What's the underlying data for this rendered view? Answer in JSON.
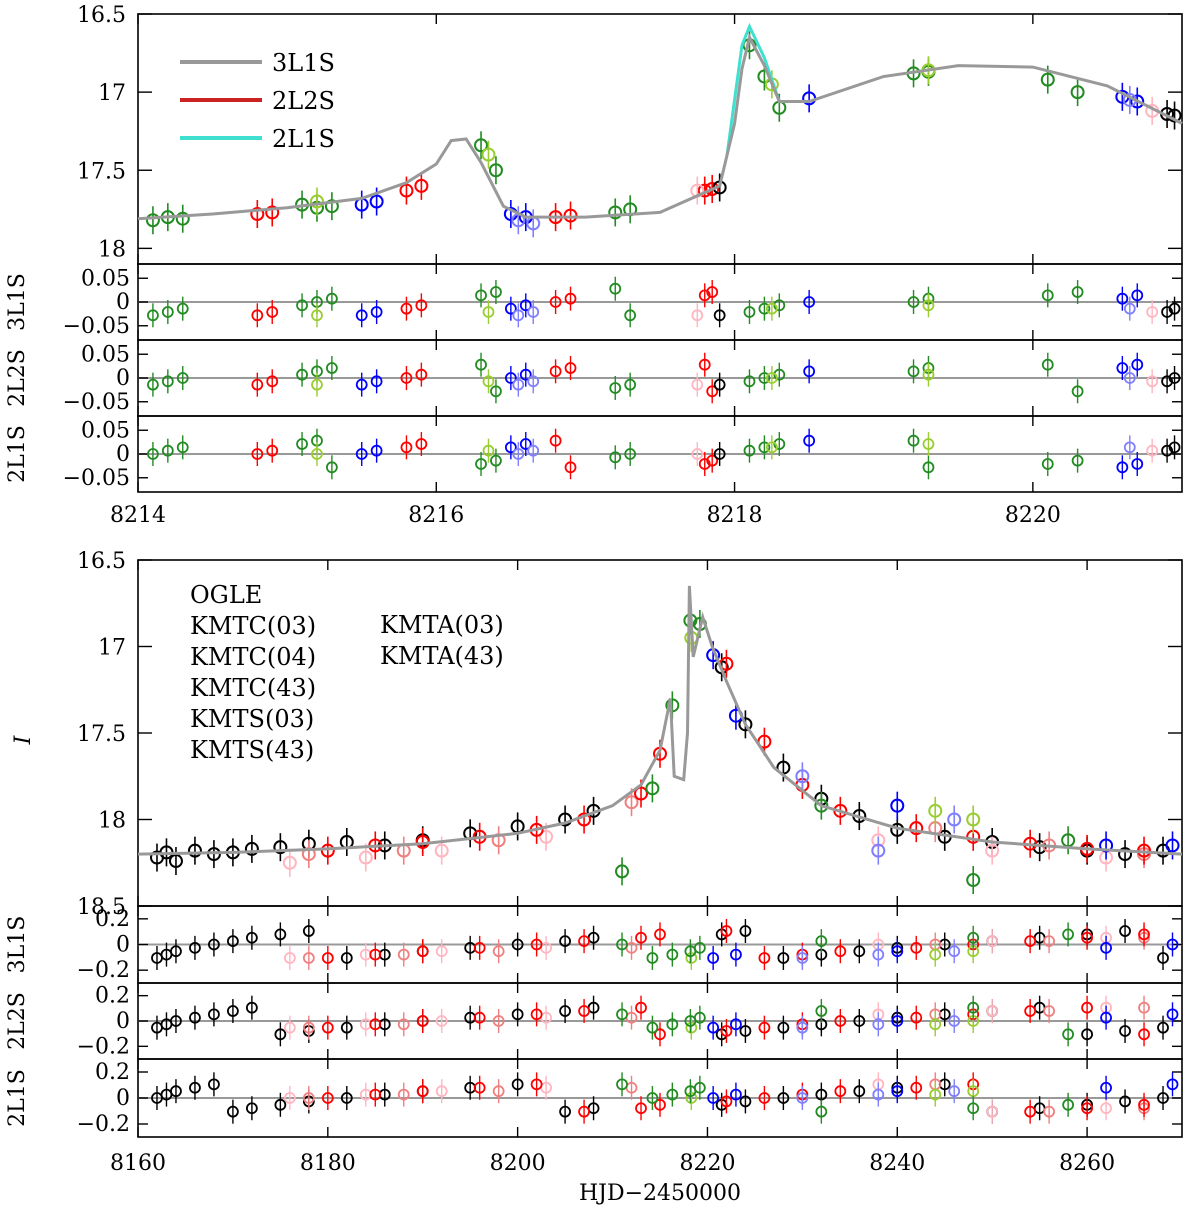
{
  "colors": {
    "OGLE": "#000000",
    "KMTC(03)": "#ffb6c1",
    "KMTC(04)": "#f08080",
    "KMTC(43)": "#ff0000",
    "KMTS(03)": "#8080ff",
    "KMTS(43)": "#0000ff",
    "KMTA(03)": "#9acd32",
    "KMTA(43)": "#228b22",
    "model_3L1S": "#999999",
    "model_2L2S": "#cc2222",
    "model_2L1S": "#40e0d0",
    "zero_line": "#999999"
  },
  "chart_data": [
    {
      "id": "zoom",
      "type": "scatter",
      "xlim": [
        8214,
        8221
      ],
      "ylim": [
        18.1,
        16.5
      ],
      "y_inverted": true,
      "xticks": [
        8214,
        8216,
        8218,
        8220
      ],
      "yticks": [
        16.5,
        17,
        17.5,
        18
      ],
      "ytick_labels": [
        "16.5",
        "17",
        "17.5",
        "18"
      ],
      "ylabel": "",
      "xlabel": "",
      "legend_position": "top-left",
      "model_legend": [
        {
          "name": "3L1S",
          "color_key": "model_3L1S"
        },
        {
          "name": "2L2S",
          "color_key": "model_2L2S"
        },
        {
          "name": "2L1S",
          "color_key": "model_2L1S"
        }
      ],
      "model_curve_3L1S": {
        "x": [
          8214.0,
          8214.5,
          8215.0,
          8215.5,
          8215.8,
          8216.0,
          8216.1,
          8216.2,
          8216.3,
          8216.45,
          8216.6,
          8217.0,
          8217.5,
          8217.9,
          8218.0,
          8218.05,
          8218.1,
          8218.2,
          8218.3,
          8218.5,
          8219.0,
          8219.5,
          8220.0,
          8220.5,
          8221.0
        ],
        "y": [
          17.81,
          17.78,
          17.74,
          17.68,
          17.58,
          17.46,
          17.31,
          17.3,
          17.45,
          17.73,
          17.8,
          17.8,
          17.77,
          17.6,
          17.2,
          16.85,
          16.65,
          16.83,
          17.06,
          17.06,
          16.9,
          16.83,
          16.84,
          16.96,
          17.2
        ]
      },
      "model_curve_2L1S_peak": {
        "x": [
          8217.95,
          8218.05,
          8218.1,
          8218.2,
          8218.3
        ],
        "y": [
          17.4,
          16.7,
          16.58,
          16.78,
          17.06
        ]
      },
      "residual_panels": [
        {
          "label": "3L1S",
          "ylim": [
            -0.08,
            0.08
          ],
          "yticks": [
            0.05,
            0,
            -0.05
          ],
          "ytick_labels": [
            "0.05",
            "0",
            "−0.05"
          ]
        },
        {
          "label": "2L2S",
          "ylim": [
            -0.08,
            0.08
          ],
          "yticks": [
            0.05,
            0,
            -0.05
          ],
          "ytick_labels": [
            "0.05",
            "0",
            "−0.05"
          ]
        },
        {
          "label": "2L1S",
          "ylim": [
            -0.08,
            0.08
          ],
          "yticks": [
            0.05,
            0,
            -0.05
          ],
          "ytick_labels": [
            "0.05",
            "0",
            "−0.05"
          ]
        }
      ],
      "xtick_labels": [
        "8214",
        "8216",
        "8218",
        "8220"
      ],
      "observation_series": [
        {
          "name": "KMTA(43)",
          "x": [
            8214.1,
            8214.2,
            8214.3,
            8215.1,
            8215.2,
            8215.3,
            8216.3,
            8216.4,
            8217.2,
            8217.3,
            8218.1,
            8218.2,
            8218.3,
            8219.2,
            8219.3,
            8220.1,
            8220.3
          ],
          "y": [
            17.82,
            17.8,
            17.81,
            17.72,
            17.74,
            17.73,
            17.34,
            17.5,
            17.77,
            17.75,
            16.7,
            16.9,
            17.1,
            16.88,
            16.87,
            16.92,
            17.0
          ]
        },
        {
          "name": "KMTA(03)",
          "x": [
            8215.2,
            8216.35,
            8218.25,
            8219.3
          ],
          "y": [
            17.7,
            17.4,
            16.95,
            16.86
          ]
        },
        {
          "name": "KMTC(43)",
          "x": [
            8214.8,
            8214.9,
            8215.8,
            8215.9,
            8216.8,
            8216.9,
            8217.8,
            8217.85
          ],
          "y": [
            17.78,
            17.77,
            17.63,
            17.6,
            17.8,
            17.79,
            17.63,
            17.62
          ]
        },
        {
          "name": "KMTS(43)",
          "x": [
            8215.5,
            8215.6,
            8216.5,
            8216.6,
            8218.5,
            8220.6,
            8220.7
          ],
          "y": [
            17.72,
            17.7,
            17.78,
            17.8,
            17.04,
            17.03,
            17.06
          ]
        },
        {
          "name": "KMTS(03)",
          "x": [
            8216.55,
            8216.65,
            8220.65
          ],
          "y": [
            17.82,
            17.84,
            17.05
          ]
        },
        {
          "name": "KMTC(03)",
          "x": [
            8217.75,
            8220.8
          ],
          "y": [
            17.63,
            17.12
          ]
        },
        {
          "name": "OGLE",
          "x": [
            8217.9,
            8220.9,
            8220.95
          ],
          "y": [
            17.61,
            17.14,
            17.15
          ]
        }
      ]
    },
    {
      "id": "full",
      "type": "scatter",
      "xlim": [
        8160,
        8270
      ],
      "ylim": [
        18.5,
        16.5
      ],
      "y_inverted": true,
      "xticks": [
        8160,
        8180,
        8200,
        8220,
        8240,
        8260
      ],
      "xtick_labels": [
        "8160",
        "8180",
        "8200",
        "8220",
        "8240",
        "8260"
      ],
      "yticks": [
        16.5,
        17,
        17.5,
        18,
        18.5
      ],
      "ytick_labels": [
        "16.5",
        "17",
        "17.5",
        "18",
        "18.5"
      ],
      "ylabel": "I",
      "xlabel": "HJD−2450000",
      "legend_position": "top-left",
      "data_legend": [
        {
          "name": "OGLE",
          "color_key": "OGLE"
        },
        {
          "name": "KMTC(03)",
          "color_key": "KMTC(03)"
        },
        {
          "name": "KMTC(04)",
          "color_key": "KMTC(04)"
        },
        {
          "name": "KMTC(43)",
          "color_key": "KMTC(43)"
        },
        {
          "name": "KMTS(03)",
          "color_key": "KMTS(03)"
        },
        {
          "name": "KMTS(43)",
          "color_key": "KMTS(43)"
        },
        {
          "name": "KMTA(03)",
          "color_key": "KMTA(03)"
        },
        {
          "name": "KMTA(43)",
          "color_key": "KMTA(43)"
        }
      ],
      "model_curve_3L1S": {
        "x": [
          8160,
          8170,
          8180,
          8190,
          8200,
          8205,
          8210,
          8213,
          8215,
          8216.1,
          8216.5,
          8217.5,
          8217.9,
          8218.1,
          8218.5,
          8219.5,
          8220.5,
          8222,
          8224,
          8227,
          8232,
          8240,
          8250,
          8260,
          8270
        ],
        "y": [
          18.2,
          18.19,
          18.17,
          18.14,
          18.08,
          18.02,
          17.92,
          17.8,
          17.6,
          17.3,
          17.75,
          17.77,
          17.5,
          16.65,
          17.06,
          16.83,
          17.0,
          17.2,
          17.45,
          17.7,
          17.92,
          18.05,
          18.13,
          18.17,
          18.2
        ]
      },
      "residual_panels": [
        {
          "label": "3L1S",
          "ylim": [
            -0.3,
            0.3
          ],
          "yticks": [
            0.2,
            0,
            -0.2
          ],
          "ytick_labels": [
            "0.2",
            "0",
            "−0.2"
          ]
        },
        {
          "label": "2L2S",
          "ylim": [
            -0.3,
            0.3
          ],
          "yticks": [
            0.2,
            0,
            -0.2
          ],
          "ytick_labels": [
            "0.2",
            "0",
            "−0.2"
          ]
        },
        {
          "label": "2L1S",
          "ylim": [
            -0.3,
            0.3
          ],
          "yticks": [
            0.2,
            0,
            -0.2
          ],
          "ytick_labels": [
            "0.2",
            "0",
            "−0.2"
          ]
        }
      ],
      "observation_series": [
        {
          "name": "OGLE",
          "x": [
            8162,
            8163,
            8164,
            8166,
            8168,
            8170,
            8172,
            8175,
            8178,
            8182,
            8186,
            8190,
            8195,
            8200,
            8205,
            8208,
            8221.5,
            8224,
            8228,
            8232,
            8236,
            8240,
            8245,
            8250,
            8255,
            8260,
            8264,
            8268
          ],
          "y": [
            18.22,
            18.19,
            18.24,
            18.18,
            18.2,
            18.19,
            18.17,
            18.16,
            18.14,
            18.13,
            18.15,
            18.12,
            18.08,
            18.04,
            18.0,
            17.95,
            17.12,
            17.45,
            17.7,
            17.88,
            17.98,
            18.06,
            18.1,
            18.13,
            18.16,
            18.18,
            18.2,
            18.18
          ]
        },
        {
          "name": "KMTC(03)",
          "x": [
            8176,
            8184,
            8192,
            8203,
            8238,
            8250,
            8262
          ],
          "y": [
            18.25,
            18.22,
            18.18,
            18.1,
            18.12,
            18.18,
            18.22
          ]
        },
        {
          "name": "KMTC(04)",
          "x": [
            8178,
            8188,
            8198,
            8212,
            8244,
            8256,
            8266
          ],
          "y": [
            18.2,
            18.18,
            18.12,
            17.9,
            18.05,
            18.15,
            18.2
          ]
        },
        {
          "name": "KMTC(43)",
          "x": [
            8180,
            8185,
            8190,
            8196,
            8202,
            8207,
            8213,
            8215,
            8222,
            8226,
            8230,
            8234,
            8242,
            8248,
            8254,
            8260,
            8266
          ],
          "y": [
            18.18,
            18.15,
            18.13,
            18.1,
            18.06,
            18.0,
            17.85,
            17.62,
            17.1,
            17.55,
            17.8,
            17.95,
            18.05,
            18.1,
            18.14,
            18.17,
            18.18
          ]
        },
        {
          "name": "KMTS(03)",
          "x": [
            8230,
            8238,
            8246
          ],
          "y": [
            17.75,
            18.18,
            18.0
          ]
        },
        {
          "name": "KMTS(43)",
          "x": [
            8220.6,
            8223,
            8240,
            8262,
            8269
          ],
          "y": [
            17.05,
            17.4,
            17.92,
            18.15,
            18.15
          ]
        },
        {
          "name": "KMTA(03)",
          "x": [
            8218.3,
            8244,
            8248
          ],
          "y": [
            16.95,
            17.95,
            18.0
          ]
        },
        {
          "name": "KMTA(43)",
          "x": [
            8214.2,
            8216.3,
            8218.2,
            8219.2,
            8211,
            8232,
            8248,
            8258
          ],
          "y": [
            17.82,
            17.34,
            16.85,
            16.87,
            18.3,
            17.92,
            18.35,
            18.12
          ]
        }
      ]
    }
  ]
}
